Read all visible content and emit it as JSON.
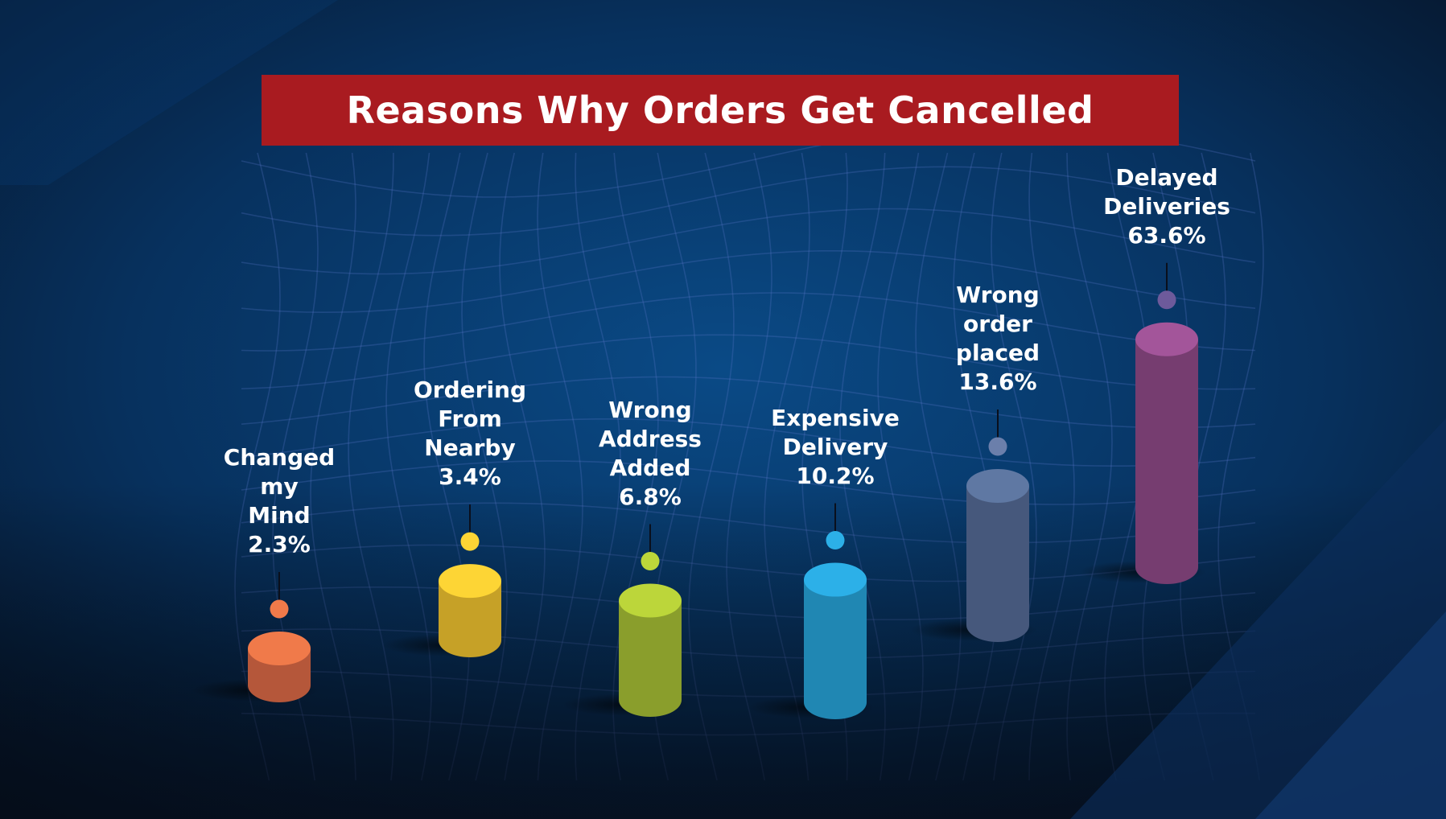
{
  "chart_data": {
    "type": "bar",
    "title": "Reasons Why Orders Get Cancelled",
    "xlabel": "",
    "ylabel": "",
    "categories": [
      "Changed my Mind",
      "Ordering From Nearby",
      "Wrong Address Added",
      "Expensive Delivery",
      "Wrong order placed",
      "Delayed Deliveries"
    ],
    "values": [
      2.3,
      3.4,
      6.8,
      10.2,
      13.6,
      63.6
    ],
    "label_lines": [
      [
        "Changed",
        "my",
        "Mind",
        "2.3%"
      ],
      [
        "Ordering",
        "From",
        "Nearby",
        "3.4%"
      ],
      [
        "Wrong",
        "Address",
        "Added",
        "6.8%"
      ],
      [
        "Expensive",
        "Delivery",
        "10.2%"
      ],
      [
        "Wrong",
        "order",
        "placed",
        "13.6%"
      ],
      [
        "Delayed",
        "Deliveries",
        "63.6%"
      ]
    ],
    "colors": [
      "#f07a4a",
      "#fdd535",
      "#bcd63a",
      "#2cb0e8",
      "#5f78a3",
      "#a3559a"
    ],
    "side_colors": [
      "#b5573a",
      "#c6a127",
      "#8a9e2c",
      "#2087b3",
      "#46587c",
      "#763d70"
    ],
    "dot_colors": [
      "#f07a4a",
      "#fdd535",
      "#bcd63a",
      "#2cb0e8",
      "#6b7fab",
      "#6d5a9b"
    ],
    "grid": false,
    "legend": "none"
  }
}
